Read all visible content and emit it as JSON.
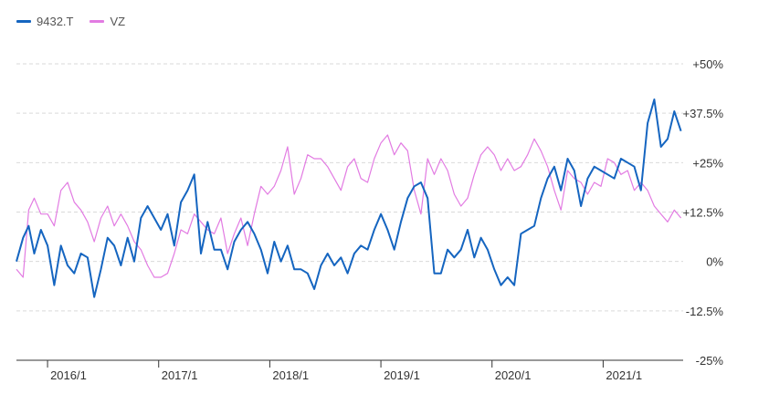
{
  "chart_data": {
    "type": "line",
    "title": "",
    "xlabel": "",
    "ylabel": "",
    "ylim": [
      -25,
      50
    ],
    "y_ticks": [
      "+50%",
      "+37.5%",
      "+25%",
      "+12.5%",
      "0%",
      "-12.5%",
      "-25%"
    ],
    "y_tick_values": [
      50,
      37.5,
      25,
      12.5,
      0,
      -12.5,
      -25
    ],
    "x_ticks": [
      "2016/1",
      "2017/1",
      "2018/1",
      "2019/1",
      "2020/1",
      "2021/1"
    ],
    "x_tick_values": [
      2016.0,
      2017.0,
      2018.0,
      2019.0,
      2020.0,
      2021.0
    ],
    "xlim": [
      2015.72,
      2021.72
    ],
    "grid": true,
    "legend_position": "top-left",
    "series": [
      {
        "name": "9432.T",
        "color": "#1565c0",
        "x": [
          2015.72,
          2015.78,
          2015.83,
          2015.88,
          2015.94,
          2016.0,
          2016.06,
          2016.12,
          2016.18,
          2016.24,
          2016.3,
          2016.36,
          2016.42,
          2016.48,
          2016.54,
          2016.6,
          2016.66,
          2016.72,
          2016.78,
          2016.84,
          2016.9,
          2016.96,
          2017.02,
          2017.08,
          2017.14,
          2017.2,
          2017.26,
          2017.32,
          2017.38,
          2017.44,
          2017.5,
          2017.56,
          2017.62,
          2017.68,
          2017.74,
          2017.8,
          2017.86,
          2017.92,
          2017.98,
          2018.04,
          2018.1,
          2018.16,
          2018.22,
          2018.28,
          2018.34,
          2018.4,
          2018.46,
          2018.52,
          2018.58,
          2018.64,
          2018.7,
          2018.76,
          2018.82,
          2018.88,
          2018.94,
          2019.0,
          2019.06,
          2019.12,
          2019.18,
          2019.24,
          2019.3,
          2019.36,
          2019.42,
          2019.48,
          2019.54,
          2019.6,
          2019.66,
          2019.72,
          2019.78,
          2019.84,
          2019.9,
          2019.96,
          2020.02,
          2020.08,
          2020.14,
          2020.2,
          2020.26,
          2020.32,
          2020.38,
          2020.44,
          2020.5,
          2020.56,
          2020.62,
          2020.68,
          2020.74,
          2020.8,
          2020.86,
          2020.92,
          2020.98,
          2021.04,
          2021.1,
          2021.16,
          2021.22,
          2021.28,
          2021.34,
          2021.4,
          2021.46,
          2021.52,
          2021.58,
          2021.64,
          2021.7
        ],
        "values": [
          0,
          6,
          9,
          2,
          8,
          4,
          -6,
          4,
          -1,
          -3,
          2,
          1,
          -9,
          -2,
          6,
          4,
          -1,
          6,
          0,
          11,
          14,
          11,
          8,
          12,
          4,
          15,
          18,
          22,
          2,
          10,
          3,
          3,
          -2,
          5,
          8,
          10,
          7,
          3,
          -3,
          5,
          0,
          4,
          -2,
          -2,
          -3,
          -7,
          -1,
          2,
          -1,
          1,
          -3,
          2,
          4,
          3,
          8,
          12,
          8,
          3,
          10,
          16,
          19,
          20,
          16,
          -3,
          -3,
          3,
          1,
          3,
          8,
          1,
          6,
          3,
          -2,
          -6,
          -4,
          -6,
          7,
          8,
          9,
          16,
          21,
          24,
          18,
          26,
          23,
          14,
          21,
          24,
          23,
          22,
          21,
          26,
          25,
          24,
          18,
          35,
          41,
          29,
          31,
          38,
          33
        ],
        "x_dense_note": ""
      },
      {
        "name": "VZ",
        "color": "#e27be2",
        "x": [
          2015.72,
          2015.78,
          2015.83,
          2015.88,
          2015.94,
          2016.0,
          2016.06,
          2016.12,
          2016.18,
          2016.24,
          2016.3,
          2016.36,
          2016.42,
          2016.48,
          2016.54,
          2016.6,
          2016.66,
          2016.72,
          2016.78,
          2016.84,
          2016.9,
          2016.96,
          2017.02,
          2017.08,
          2017.14,
          2017.2,
          2017.26,
          2017.32,
          2017.38,
          2017.44,
          2017.5,
          2017.56,
          2017.62,
          2017.68,
          2017.74,
          2017.8,
          2017.86,
          2017.92,
          2017.98,
          2018.04,
          2018.1,
          2018.16,
          2018.22,
          2018.28,
          2018.34,
          2018.4,
          2018.46,
          2018.52,
          2018.58,
          2018.64,
          2018.7,
          2018.76,
          2018.82,
          2018.88,
          2018.94,
          2019.0,
          2019.06,
          2019.12,
          2019.18,
          2019.24,
          2019.3,
          2019.36,
          2019.42,
          2019.48,
          2019.54,
          2019.6,
          2019.66,
          2019.72,
          2019.78,
          2019.84,
          2019.9,
          2019.96,
          2020.02,
          2020.08,
          2020.14,
          2020.2,
          2020.26,
          2020.32,
          2020.38,
          2020.44,
          2020.5,
          2020.56,
          2020.62,
          2020.68,
          2020.74,
          2020.8,
          2020.86,
          2020.92,
          2020.98,
          2021.04,
          2021.1,
          2021.16,
          2021.22,
          2021.28,
          2021.34,
          2021.4,
          2021.46,
          2021.52,
          2021.58,
          2021.64,
          2021.7
        ],
        "values": [
          -2,
          -4,
          13,
          16,
          12,
          12,
          9,
          18,
          20,
          15,
          13,
          10,
          5,
          11,
          14,
          9,
          12,
          9,
          5,
          3,
          -1,
          -4,
          -4,
          -3,
          2,
          8,
          7,
          12,
          10,
          8,
          7,
          11,
          2,
          7,
          11,
          4,
          12,
          19,
          17,
          19,
          23,
          29,
          17,
          21,
          27,
          26,
          26,
          24,
          21,
          18,
          24,
          26,
          21,
          20,
          26,
          30,
          32,
          27,
          30,
          28,
          18,
          12,
          26,
          22,
          26,
          23,
          17,
          14,
          16,
          22,
          27,
          29,
          27,
          23,
          26,
          23,
          24,
          27,
          31,
          28,
          24,
          18,
          13,
          23,
          21,
          20,
          17,
          20,
          19,
          26,
          25,
          22,
          23,
          18,
          20,
          18,
          14,
          12,
          10,
          13,
          11
        ]
      }
    ]
  }
}
